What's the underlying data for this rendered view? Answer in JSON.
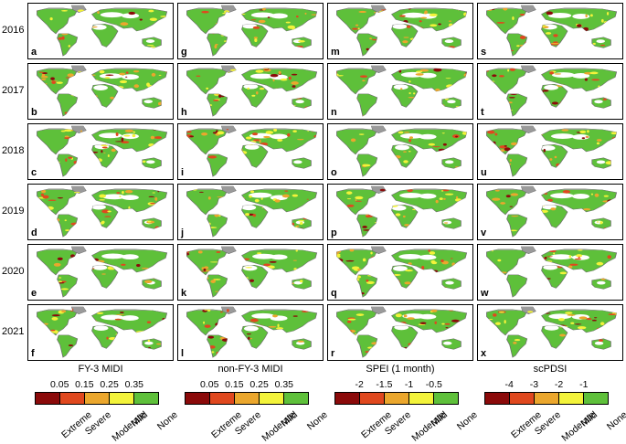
{
  "years": [
    "2016",
    "2017",
    "2018",
    "2019",
    "2020",
    "2021"
  ],
  "panel_letters": [
    [
      "a",
      "g",
      "m",
      "s"
    ],
    [
      "b",
      "h",
      "n",
      "t"
    ],
    [
      "c",
      "i",
      "o",
      "u"
    ],
    [
      "d",
      "j",
      "p",
      "v"
    ],
    [
      "e",
      "k",
      "q",
      "w"
    ],
    [
      "f",
      "l",
      "r",
      "x"
    ]
  ],
  "legends": [
    {
      "title": "FY-3 MIDI",
      "ticks": [
        "0.05",
        "0.15",
        "0.25",
        "0.35"
      ]
    },
    {
      "title": "non-FY-3 MIDI",
      "ticks": [
        "0.05",
        "0.15",
        "0.25",
        "0.35"
      ]
    },
    {
      "title": "SPEI (1 month)",
      "ticks": [
        "-2",
        "-1.5",
        "-1",
        "-0.5"
      ]
    },
    {
      "title": "scPDSI",
      "ticks": [
        "-4",
        "-3",
        "-2",
        "-1"
      ]
    }
  ],
  "categories": [
    "Extreme",
    "Severe",
    "Moderate",
    "Mild",
    "None"
  ],
  "colors": {
    "extreme": "#8b0a0a",
    "severe": "#e0481e",
    "moderate": "#eba72d",
    "mild": "#f3f33a",
    "none": "#5ec03a",
    "no_data": "#9a9a9a"
  }
}
